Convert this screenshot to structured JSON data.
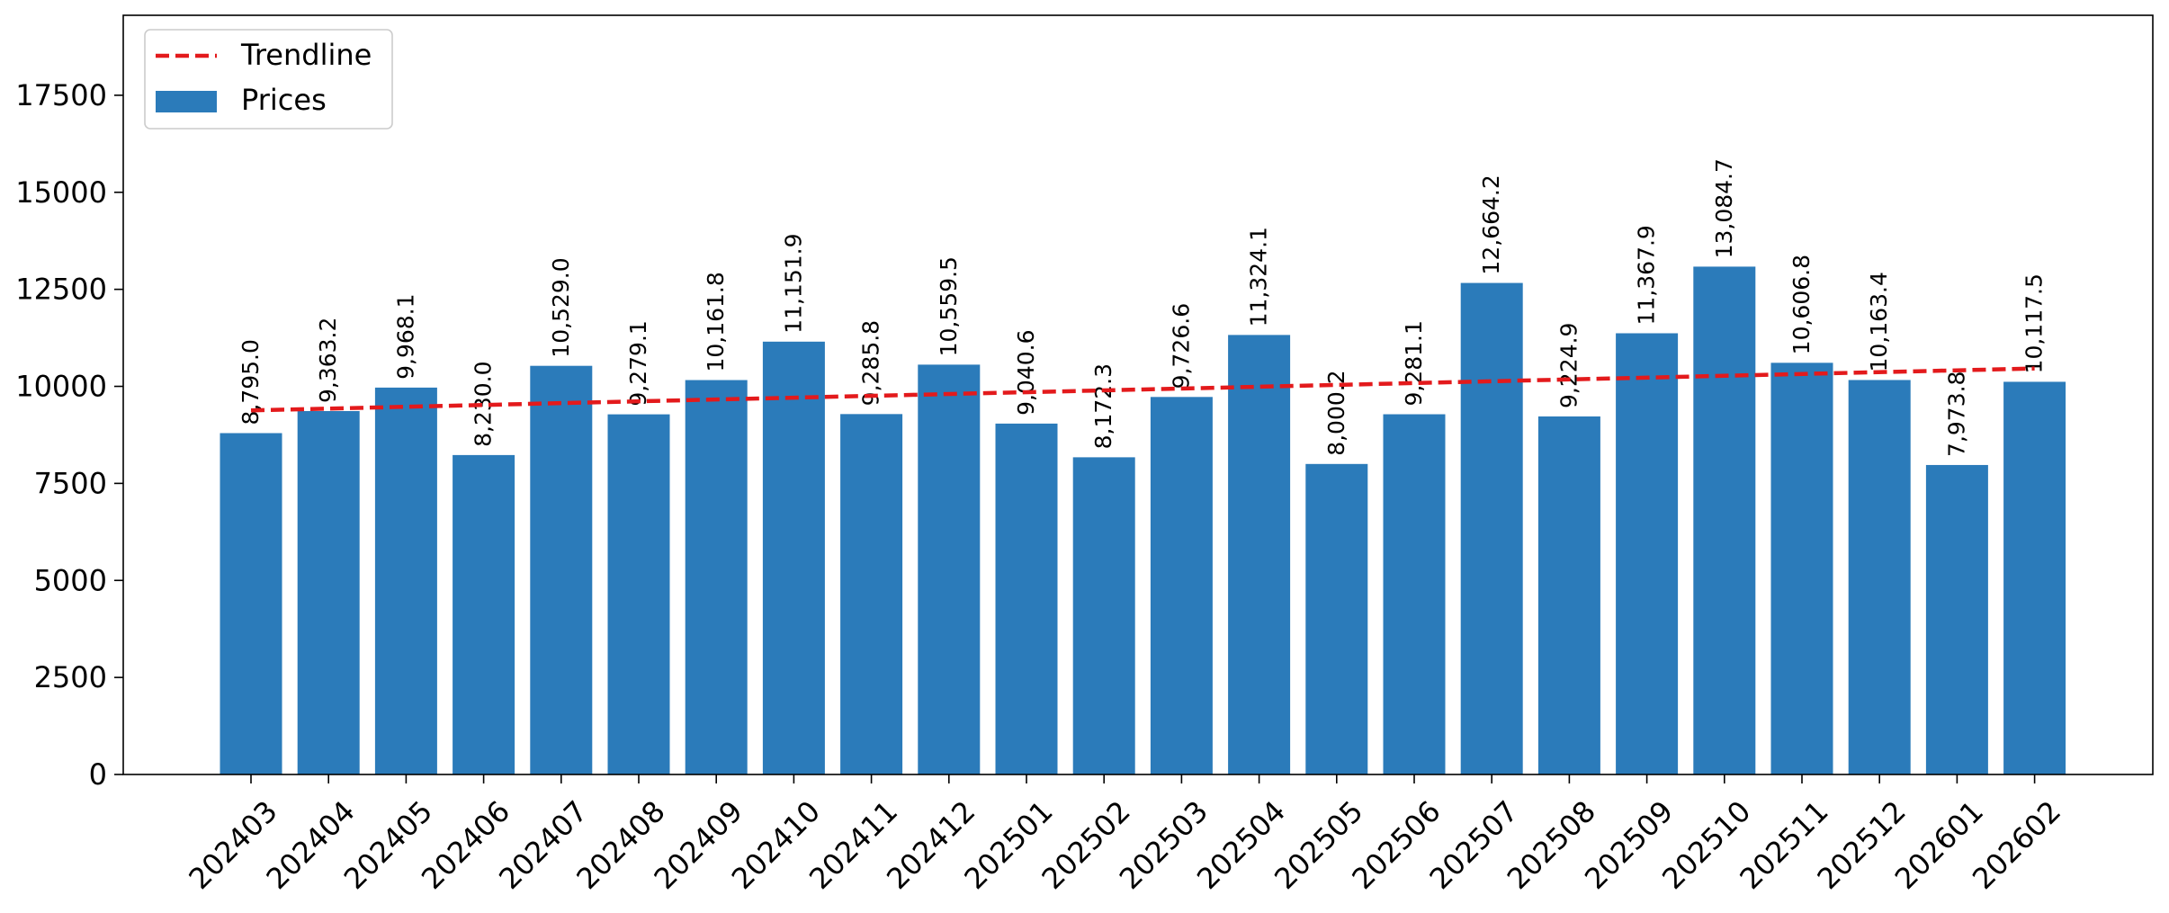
{
  "chart_data": {
    "type": "bar",
    "categories": [
      "202403",
      "202404",
      "202405",
      "202406",
      "202407",
      "202408",
      "202409",
      "202410",
      "202411",
      "202412",
      "202501",
      "202502",
      "202503",
      "202504",
      "202505",
      "202506",
      "202507",
      "202508",
      "202509",
      "202510",
      "202511",
      "202512",
      "202601",
      "202602"
    ],
    "series": [
      {
        "name": "Prices",
        "type": "bar",
        "color": "#2b7bba",
        "values": [
          8795.0,
          9363.2,
          9968.1,
          8230.0,
          10529.0,
          9279.1,
          10161.8,
          11151.9,
          9285.8,
          10559.5,
          9040.6,
          8172.3,
          9726.6,
          11324.1,
          8000.2,
          9281.1,
          12664.2,
          9224.9,
          11367.9,
          13084.7,
          10606.8,
          10163.4,
          7973.8,
          10117.5
        ],
        "data_labels": [
          "8,795.0",
          "9,363.2",
          "9,968.1",
          "8,230.0",
          "10,529.0",
          "9,279.1",
          "10,161.8",
          "11,151.9",
          "9,285.8",
          "10,559.5",
          "9,040.6",
          "8,172.3",
          "9,726.6",
          "11,324.1",
          "8,000.2",
          "9,281.1",
          "12,664.2",
          "9,224.9",
          "11,367.9",
          "13,084.7",
          "10,606.8",
          "10,163.4",
          "7,973.8",
          "10,117.5"
        ]
      },
      {
        "name": "Trendline",
        "type": "line",
        "style": "dashed",
        "color": "#e31a1c",
        "start_value": 9380,
        "end_value": 10460
      }
    ],
    "title": "",
    "xlabel": "",
    "ylabel": "",
    "ylim": [
      0,
      19600
    ],
    "yticks": [
      0,
      2500,
      5000,
      7500,
      10000,
      12500,
      15000,
      17500
    ],
    "ytick_labels": [
      "0",
      "2500",
      "5000",
      "7500",
      "10000",
      "12500",
      "15000",
      "17500"
    ],
    "grid": false,
    "legend_position": "top-left",
    "legend": [
      {
        "label": "Trendline",
        "kind": "dashed-line",
        "color": "#e31a1c"
      },
      {
        "label": "Prices",
        "kind": "patch",
        "color": "#2b7bba"
      }
    ]
  }
}
